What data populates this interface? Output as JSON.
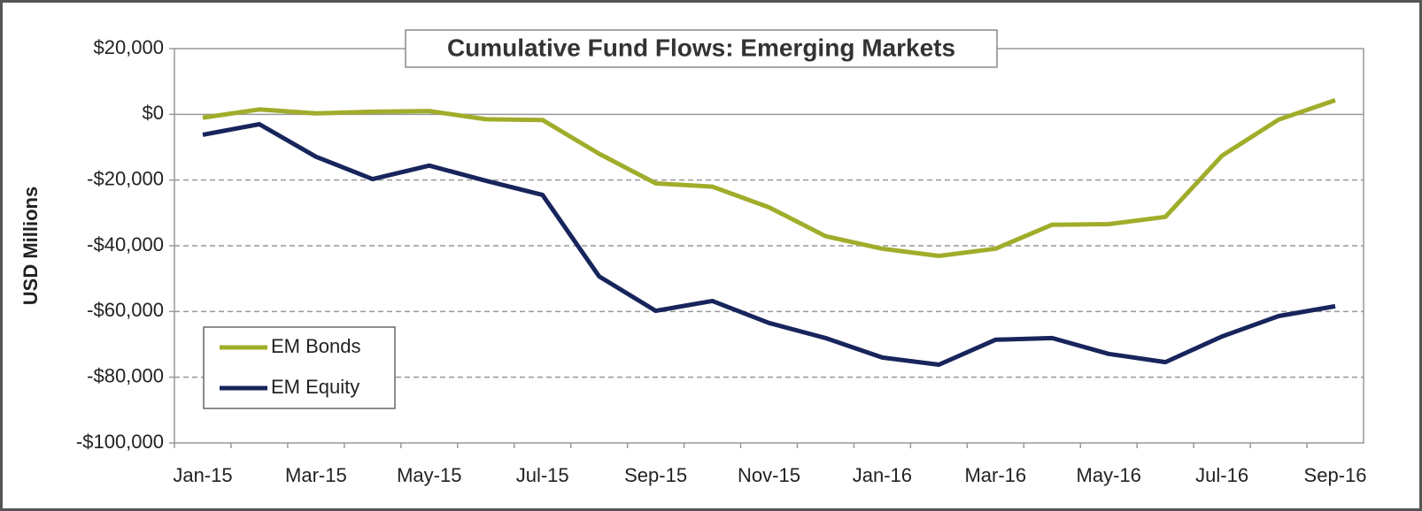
{
  "chart_data": {
    "type": "line",
    "title": "Cumulative Fund Flows: Emerging Markets",
    "y_label": "USD Millions",
    "categories": [
      "Jan-15",
      null,
      "Mar-15",
      null,
      "May-15",
      null,
      "Jul-15",
      null,
      "Sep-15",
      null,
      "Nov-15",
      null,
      "Jan-16",
      null,
      "Mar-16",
      null,
      "May-16",
      null,
      "Jul-16",
      null,
      "Sep-16"
    ],
    "series": [
      {
        "name": "EM Bonds",
        "color": "#a0ad2a",
        "values": [
          -1000,
          1500,
          300,
          800,
          1000,
          -1500,
          -1700,
          -12000,
          -21000,
          -22000,
          -28300,
          -37100,
          -40900,
          -43100,
          -40900,
          -33600,
          -33400,
          -31200,
          -12600,
          -1600,
          4300
        ]
      },
      {
        "name": "EM Equity",
        "color": "#17255c",
        "values": [
          -6200,
          -3000,
          -12900,
          -19700,
          -15600,
          -20200,
          -24500,
          -49300,
          -59800,
          -56800,
          -63500,
          -68100,
          -74000,
          -76200,
          -68600,
          -68100,
          -72900,
          -75400,
          -67600,
          -61400,
          -58400
        ]
      }
    ],
    "ylim": [
      -100000,
      20000
    ],
    "yticks": [
      {
        "value": -100000,
        "label": "-$100,000"
      },
      {
        "value": -80000,
        "label": "-$80,000"
      },
      {
        "value": -60000,
        "label": "-$60,000"
      },
      {
        "value": -40000,
        "label": "-$40,000"
      },
      {
        "value": -20000,
        "label": "-$20,000"
      },
      {
        "value": 0,
        "label": "$0"
      },
      {
        "value": 20000,
        "label": "$20,000"
      }
    ],
    "grid": true,
    "legend": "lower left"
  }
}
